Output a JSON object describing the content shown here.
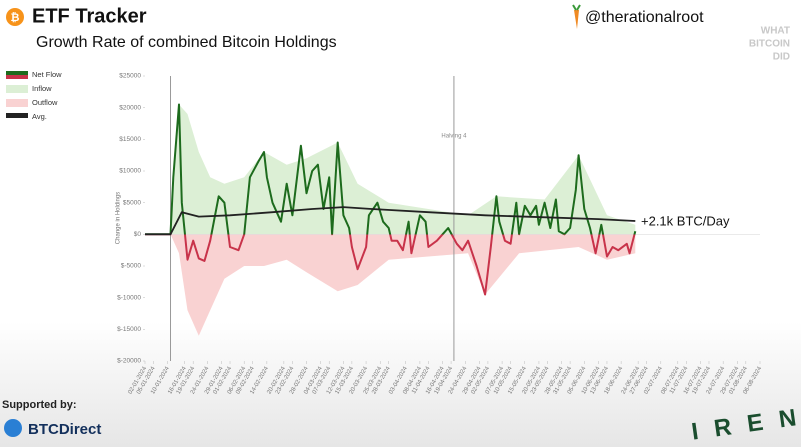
{
  "chart_data": {
    "type": "line",
    "title": "ETF Tracker",
    "subtitle": "Growth Rate of combined Bitcoin Holdings",
    "y_label": "Change in Holdings",
    "annotation": "+2.1k BTC/Day",
    "xlim": [
      "02-01-2024",
      "06-08-2024"
    ],
    "xticks": [
      "02-01-2024",
      "05-01-2024",
      "10-01-2024",
      "16-01-2024",
      "19-01-2024",
      "24-01-2024",
      "29-01-2024",
      "01-02-2024",
      "06-02-2024",
      "09-02-2024",
      "14-02-2024",
      "20-02-2024",
      "23-02-2024",
      "28-02-2024",
      "04-03-2024",
      "07-03-2024",
      "12-03-2024",
      "15-03-2024",
      "20-03-2024",
      "25-03-2024",
      "28-03-2024",
      "03-04-2024",
      "08-04-2024",
      "11-04-2024",
      "16-04-2024",
      "19-04-2024",
      "24-04-2024",
      "29-04-2024",
      "02-05-2024",
      "07-05-2024",
      "10-05-2024",
      "15-05-2024",
      "20-05-2024",
      "23-05-2024",
      "28-05-2024",
      "31-05-2024",
      "05-06-2024",
      "10-06-2024",
      "13-06-2024",
      "18-06-2024",
      "24-06-2024",
      "27-06-2024",
      "02-07-2024",
      "08-07-2024",
      "11-07-2024",
      "16-07-2024",
      "19-07-2024",
      "24-07-2024",
      "29-07-2024",
      "01-08-2024",
      "06-08-2024"
    ],
    "ylim": [
      -20000,
      25000
    ],
    "yticks": [
      {
        "value": -20000,
        "label": "$-20000"
      },
      {
        "value": -15000,
        "label": "$-15000"
      },
      {
        "value": -10000,
        "label": "$-10000"
      },
      {
        "value": -5000,
        "label": "$-5000"
      },
      {
        "value": 0,
        "label": "$0"
      },
      {
        "value": 5000,
        "label": "$5000"
      },
      {
        "value": 10000,
        "label": "$10000"
      },
      {
        "value": 15000,
        "label": "$15000"
      },
      {
        "value": 20000,
        "label": "$20000"
      },
      {
        "value": 25000,
        "label": "$25000"
      }
    ],
    "vlines": [
      {
        "x": "11-01-2024"
      },
      {
        "x": "20-04-2024",
        "label": "Halving 4"
      }
    ],
    "series": [
      {
        "name": "Net Flow",
        "style": "line",
        "color": "#1d6b1d",
        "negative_color": "#c8334a",
        "x": [
          "02-01-2024",
          "11-01-2024",
          "12-01-2024",
          "14-01-2024",
          "15-01-2024",
          "17-01-2024",
          "19-01-2024",
          "21-01-2024",
          "23-01-2024",
          "25-01-2024",
          "28-01-2024",
          "30-01-2024",
          "01-02-2024",
          "04-02-2024",
          "06-02-2024",
          "08-02-2024",
          "11-02-2024",
          "13-02-2024",
          "14-02-2024",
          "16-02-2024",
          "19-02-2024",
          "21-02-2024",
          "23-02-2024",
          "26-02-2024",
          "28-02-2024",
          "01-03-2024",
          "03-03-2024",
          "05-03-2024",
          "07-03-2024",
          "08-03-2024",
          "10-03-2024",
          "12-03-2024",
          "14-03-2024",
          "15-03-2024",
          "17-03-2024",
          "20-03-2024",
          "21-03-2024",
          "24-03-2024",
          "26-03-2024",
          "28-03-2024",
          "29-03-2024",
          "31-03-2024",
          "02-04-2024",
          "04-04-2024",
          "05-04-2024",
          "08-04-2024",
          "10-04-2024",
          "11-04-2024",
          "14-04-2024",
          "16-04-2024",
          "18-04-2024",
          "21-04-2024",
          "23-04-2024",
          "25-04-2024",
          "28-04-2024",
          "01-05-2024",
          "03-05-2024",
          "05-05-2024",
          "06-05-2024",
          "08-05-2024",
          "10-05-2024",
          "12-05-2024",
          "13-05-2024",
          "15-05-2024",
          "17-05-2024",
          "19-05-2024",
          "20-05-2024",
          "22-05-2024",
          "24-05-2024",
          "26-05-2024",
          "27-05-2024",
          "29-05-2024",
          "31-05-2024",
          "02-06-2024",
          "03-06-2024",
          "05-06-2024",
          "07-06-2024",
          "09-06-2024",
          "11-06-2024",
          "13-06-2024",
          "15-06-2024",
          "17-06-2024",
          "20-06-2024",
          "21-06-2024",
          "23-06-2024"
        ],
        "values": [
          0,
          0,
          9000,
          20500,
          5000,
          -4000,
          -1000,
          -3800,
          -4200,
          -1000,
          6000,
          5000,
          -2000,
          -2500,
          0,
          9000,
          11500,
          13000,
          9000,
          5000,
          2000,
          8000,
          3000,
          14000,
          6500,
          10000,
          11000,
          4000,
          9000,
          0,
          14500,
          3000,
          1000,
          -2000,
          -5500,
          -2000,
          3000,
          5000,
          2000,
          1000,
          -1000,
          -1000,
          -2500,
          2000,
          -3000,
          3000,
          2000,
          -2000,
          -1000,
          0,
          1000,
          -1500,
          -2500,
          -1000,
          -5000,
          -9500,
          -2000,
          6000,
          2000,
          -1000,
          -1500,
          5000,
          0,
          4500,
          3000,
          4500,
          1500,
          5000,
          1000,
          5500,
          500,
          0,
          1000,
          7000,
          12500,
          4000,
          1000,
          -3000,
          1500,
          -3500,
          -2000,
          -2500,
          -1500,
          -3000,
          500
        ]
      },
      {
        "name": "Inflow",
        "style": "area",
        "color": "#dcefd5",
        "x": [
          "02-01-2024",
          "11-01-2024",
          "14-01-2024",
          "17-01-2024",
          "21-01-2024",
          "25-01-2024",
          "30-01-2024",
          "06-02-2024",
          "13-02-2024",
          "21-02-2024",
          "28-02-2024",
          "10-03-2024",
          "17-03-2024",
          "28-03-2024",
          "11-04-2024",
          "25-04-2024",
          "05-05-2024",
          "22-05-2024",
          "03-06-2024",
          "13-06-2024",
          "23-06-2024"
        ],
        "values": [
          0,
          0,
          20500,
          19000,
          13000,
          9000,
          8000,
          9000,
          13000,
          11000,
          12000,
          14500,
          8000,
          5000,
          4000,
          3000,
          6000,
          5500,
          12500,
          3000,
          1500
        ]
      },
      {
        "name": "Outflow",
        "style": "area",
        "color": "#f9d2d2",
        "x": [
          "02-01-2024",
          "11-01-2024",
          "14-01-2024",
          "17-01-2024",
          "21-01-2024",
          "25-01-2024",
          "30-01-2024",
          "06-02-2024",
          "13-02-2024",
          "21-02-2024",
          "28-02-2024",
          "10-03-2024",
          "17-03-2024",
          "28-03-2024",
          "11-04-2024",
          "25-04-2024",
          "01-05-2024",
          "13-05-2024",
          "03-06-2024",
          "13-06-2024",
          "23-06-2024"
        ],
        "values": [
          0,
          0,
          -3000,
          -12000,
          -16000,
          -12000,
          -7000,
          -5000,
          -5000,
          -4000,
          -6000,
          -9000,
          -8000,
          -4000,
          -3500,
          -3000,
          -9500,
          -3000,
          -2000,
          -4000,
          -3000
        ]
      },
      {
        "name": "Avg.",
        "style": "line",
        "color": "#222222",
        "x": [
          "02-01-2024",
          "11-01-2024",
          "15-01-2024",
          "21-01-2024",
          "01-02-2024",
          "16-02-2024",
          "01-03-2024",
          "12-03-2024",
          "22-03-2024",
          "11-04-2024",
          "01-05-2024",
          "21-05-2024",
          "10-06-2024",
          "23-06-2024"
        ],
        "values": [
          0,
          0,
          3500,
          2800,
          3000,
          3500,
          4000,
          4300,
          4000,
          3500,
          3000,
          2700,
          2400,
          2100
        ]
      }
    ]
  },
  "branding": {
    "handle": "@therationalroot",
    "logo": [
      "WHAT",
      "BITCOIN",
      "DID"
    ],
    "sponsor_label": "Supported by:",
    "sponsor": "BTCDirect",
    "corner": "IREN"
  }
}
